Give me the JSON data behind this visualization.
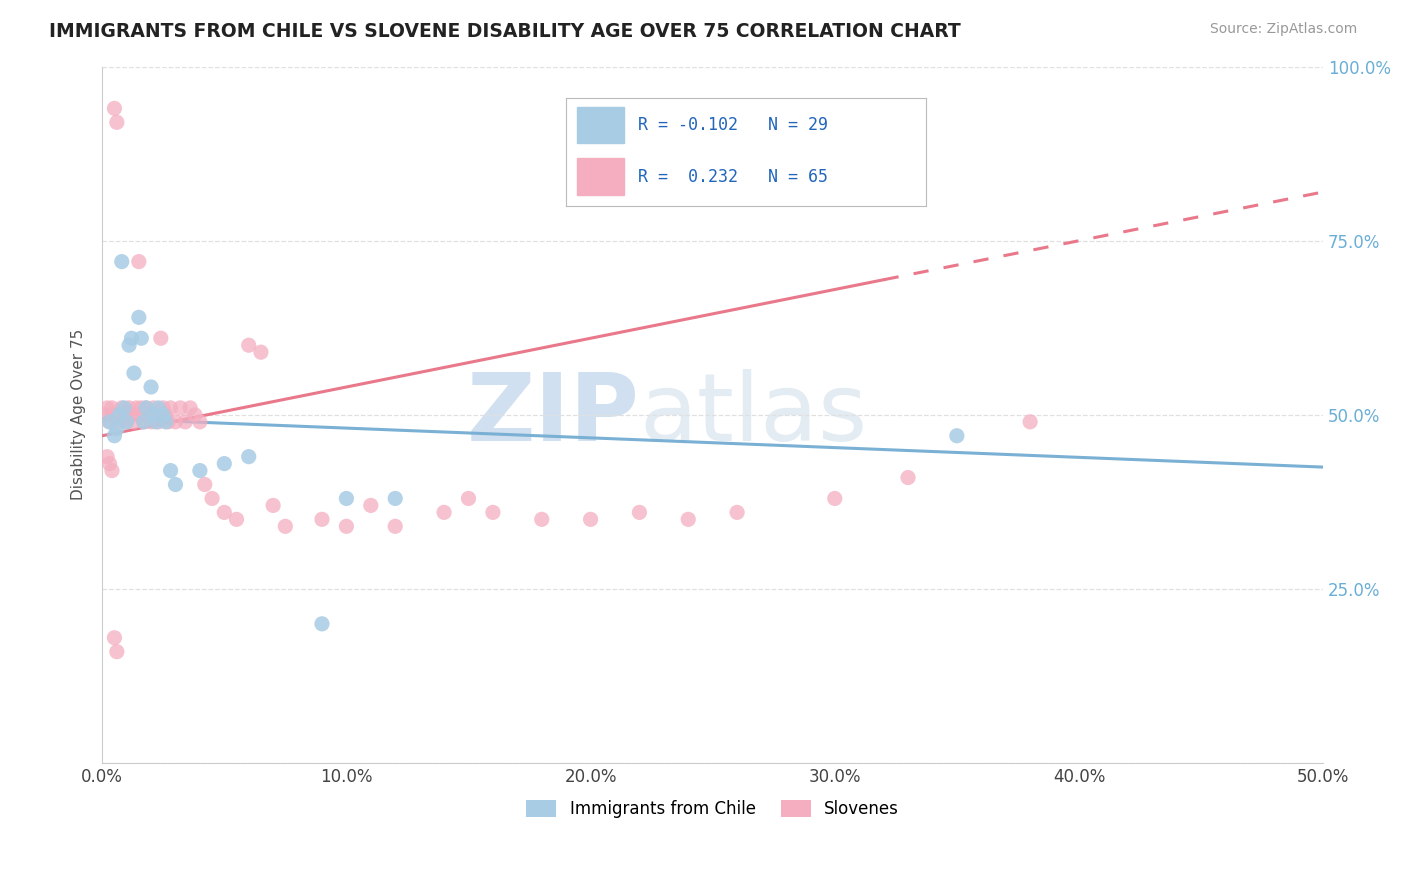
{
  "title": "IMMIGRANTS FROM CHILE VS SLOVENE DISABILITY AGE OVER 75 CORRELATION CHART",
  "source_text": "Source: ZipAtlas.com",
  "ylabel": "Disability Age Over 75",
  "legend_label1": "Immigrants from Chile",
  "legend_label2": "Slovenes",
  "R1": -0.102,
  "N1": 29,
  "R2": 0.232,
  "N2": 65,
  "xlim": [
    0.0,
    0.5
  ],
  "ylim": [
    0.0,
    1.0
  ],
  "xticks": [
    0.0,
    0.1,
    0.2,
    0.3,
    0.4,
    0.5
  ],
  "yticks": [
    0.0,
    0.25,
    0.5,
    0.75,
    1.0
  ],
  "xtick_labels": [
    "0.0%",
    "10.0%",
    "20.0%",
    "30.0%",
    "40.0%",
    "50.0%"
  ],
  "ytick_labels_right": [
    "",
    "25.0%",
    "50.0%",
    "75.0%",
    "100.0%"
  ],
  "color1": "#a8cce4",
  "color2": "#f4aec0",
  "trendline_color1": "#7ab0d4",
  "trendline_color2": "#e8788a",
  "watermark_zip": "ZIP",
  "watermark_atlas": "atlas",
  "grid_color": "#e0e0e0",
  "blue_scatter_x": [
    0.003,
    0.005,
    0.006,
    0.007,
    0.008,
    0.009,
    0.01,
    0.011,
    0.012,
    0.013,
    0.015,
    0.016,
    0.017,
    0.018,
    0.02,
    0.021,
    0.022,
    0.023,
    0.025,
    0.026,
    0.028,
    0.03,
    0.04,
    0.05,
    0.06,
    0.09,
    0.1,
    0.12,
    0.35
  ],
  "blue_scatter_y": [
    0.49,
    0.47,
    0.48,
    0.5,
    0.72,
    0.51,
    0.49,
    0.6,
    0.61,
    0.56,
    0.64,
    0.61,
    0.49,
    0.51,
    0.54,
    0.5,
    0.49,
    0.51,
    0.5,
    0.49,
    0.42,
    0.4,
    0.42,
    0.43,
    0.44,
    0.2,
    0.38,
    0.38,
    0.47
  ],
  "pink_scatter_x": [
    0.001,
    0.002,
    0.003,
    0.004,
    0.004,
    0.005,
    0.006,
    0.007,
    0.007,
    0.008,
    0.009,
    0.01,
    0.011,
    0.012,
    0.013,
    0.014,
    0.015,
    0.015,
    0.016,
    0.017,
    0.018,
    0.019,
    0.02,
    0.021,
    0.022,
    0.023,
    0.024,
    0.025,
    0.026,
    0.027,
    0.028,
    0.03,
    0.032,
    0.034,
    0.036,
    0.038,
    0.04,
    0.042,
    0.045,
    0.05,
    0.055,
    0.06,
    0.065,
    0.07,
    0.075,
    0.09,
    0.1,
    0.11,
    0.12,
    0.14,
    0.15,
    0.16,
    0.18,
    0.2,
    0.22,
    0.24,
    0.26,
    0.3,
    0.33,
    0.38,
    0.002,
    0.003,
    0.004,
    0.005,
    0.006
  ],
  "pink_scatter_y": [
    0.5,
    0.51,
    0.49,
    0.51,
    0.5,
    0.94,
    0.92,
    0.49,
    0.5,
    0.51,
    0.5,
    0.49,
    0.51,
    0.5,
    0.49,
    0.51,
    0.72,
    0.5,
    0.51,
    0.49,
    0.51,
    0.5,
    0.49,
    0.51,
    0.5,
    0.49,
    0.61,
    0.51,
    0.5,
    0.49,
    0.51,
    0.49,
    0.51,
    0.49,
    0.51,
    0.5,
    0.49,
    0.4,
    0.38,
    0.36,
    0.35,
    0.6,
    0.59,
    0.37,
    0.34,
    0.35,
    0.34,
    0.37,
    0.34,
    0.36,
    0.38,
    0.36,
    0.35,
    0.35,
    0.36,
    0.35,
    0.36,
    0.38,
    0.41,
    0.49,
    0.44,
    0.43,
    0.42,
    0.18,
    0.16
  ],
  "trend_blue_x0": 0.0,
  "trend_blue_y0": 0.495,
  "trend_blue_x1": 0.5,
  "trend_blue_y1": 0.425,
  "trend_pink_x0": 0.0,
  "trend_pink_y0": 0.47,
  "trend_pink_x1": 0.5,
  "trend_pink_y1": 0.82,
  "trend_pink_solid_end": 0.32,
  "trend_pink_dashed_start": 0.32
}
